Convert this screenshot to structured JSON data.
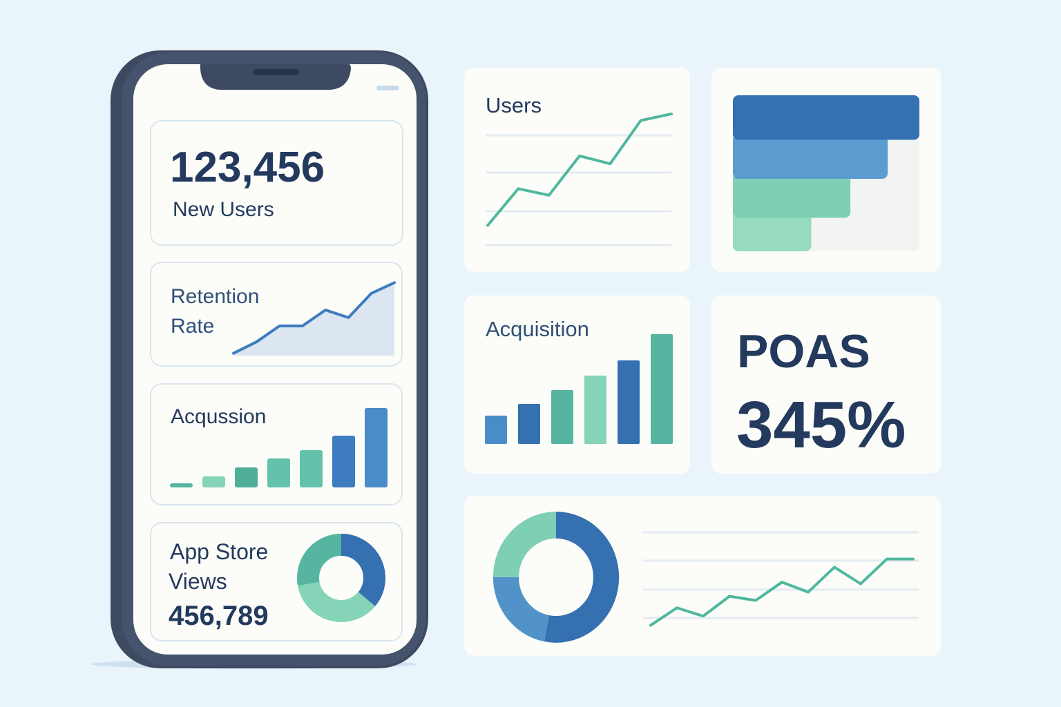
{
  "colors": {
    "background": "#eaf4fb",
    "card": "#fcfcf8",
    "phone_frame": "#3e4a62",
    "text": "#233a5e",
    "dark_blue": "#3570b0",
    "mid_blue": "#4f8fc9",
    "teal": "#55b5a0",
    "light_green": "#85d4b8",
    "gridline": "#e3ebf2"
  },
  "phone": {
    "new_users": {
      "value": "123,456",
      "label": "New Users"
    },
    "retention": {
      "label_line1": "Retention",
      "label_line2": "Rate"
    },
    "acquisition": {
      "label": "Acqussion"
    },
    "app_store": {
      "label_line1": "App Store",
      "label_line2": "Views",
      "value": "456,789"
    }
  },
  "dashboard": {
    "users_title": "Users",
    "acquisition_title": "Acquisition",
    "poas_label": "POAS",
    "poas_value": "345%"
  },
  "chart_data": [
    {
      "id": "phone-retention",
      "type": "area",
      "values": [
        3,
        18,
        39,
        39,
        60,
        50,
        82,
        96
      ]
    },
    {
      "id": "phone-acquisition",
      "type": "bar",
      "values": [
        6,
        16,
        29,
        42,
        54,
        75,
        115
      ],
      "colors": [
        "#55b5a0",
        "#85d4b8",
        "#4fae98",
        "#62c2aa",
        "#62c2aa",
        "#3d7cbf",
        "#4a8cc8"
      ]
    },
    {
      "id": "phone-app-store-donut",
      "type": "pie",
      "values": [
        36,
        36,
        28
      ],
      "colors": [
        "#3570b0",
        "#85d4b8",
        "#55b5a0"
      ]
    },
    {
      "id": "users-line",
      "type": "line",
      "values": [
        15,
        43,
        38,
        68,
        62,
        95,
        100
      ],
      "grid": true
    },
    {
      "id": "funnel",
      "type": "bar",
      "orientation": "horizontal",
      "values": [
        100,
        83,
        63,
        42
      ],
      "colors": [
        "#3570b0",
        "#5b9bd0",
        "#7ecfb3",
        "#96dac0"
      ]
    },
    {
      "id": "acquisition-bars",
      "type": "bar",
      "values": [
        41,
        58,
        78,
        99,
        121,
        159
      ],
      "colors": [
        "#4a8cc8",
        "#3570b0",
        "#55b5a0",
        "#85d4b8",
        "#3570b0",
        "#55b5a0"
      ]
    },
    {
      "id": "bottom-donut",
      "type": "pie",
      "values": [
        53,
        22,
        25
      ],
      "colors": [
        "#3570b0",
        "#5193c9",
        "#7ecfb3"
      ]
    },
    {
      "id": "bottom-line",
      "type": "line",
      "values": [
        12,
        33,
        23,
        47,
        42,
        64,
        52,
        82,
        62,
        92,
        92
      ],
      "grid": true
    }
  ]
}
